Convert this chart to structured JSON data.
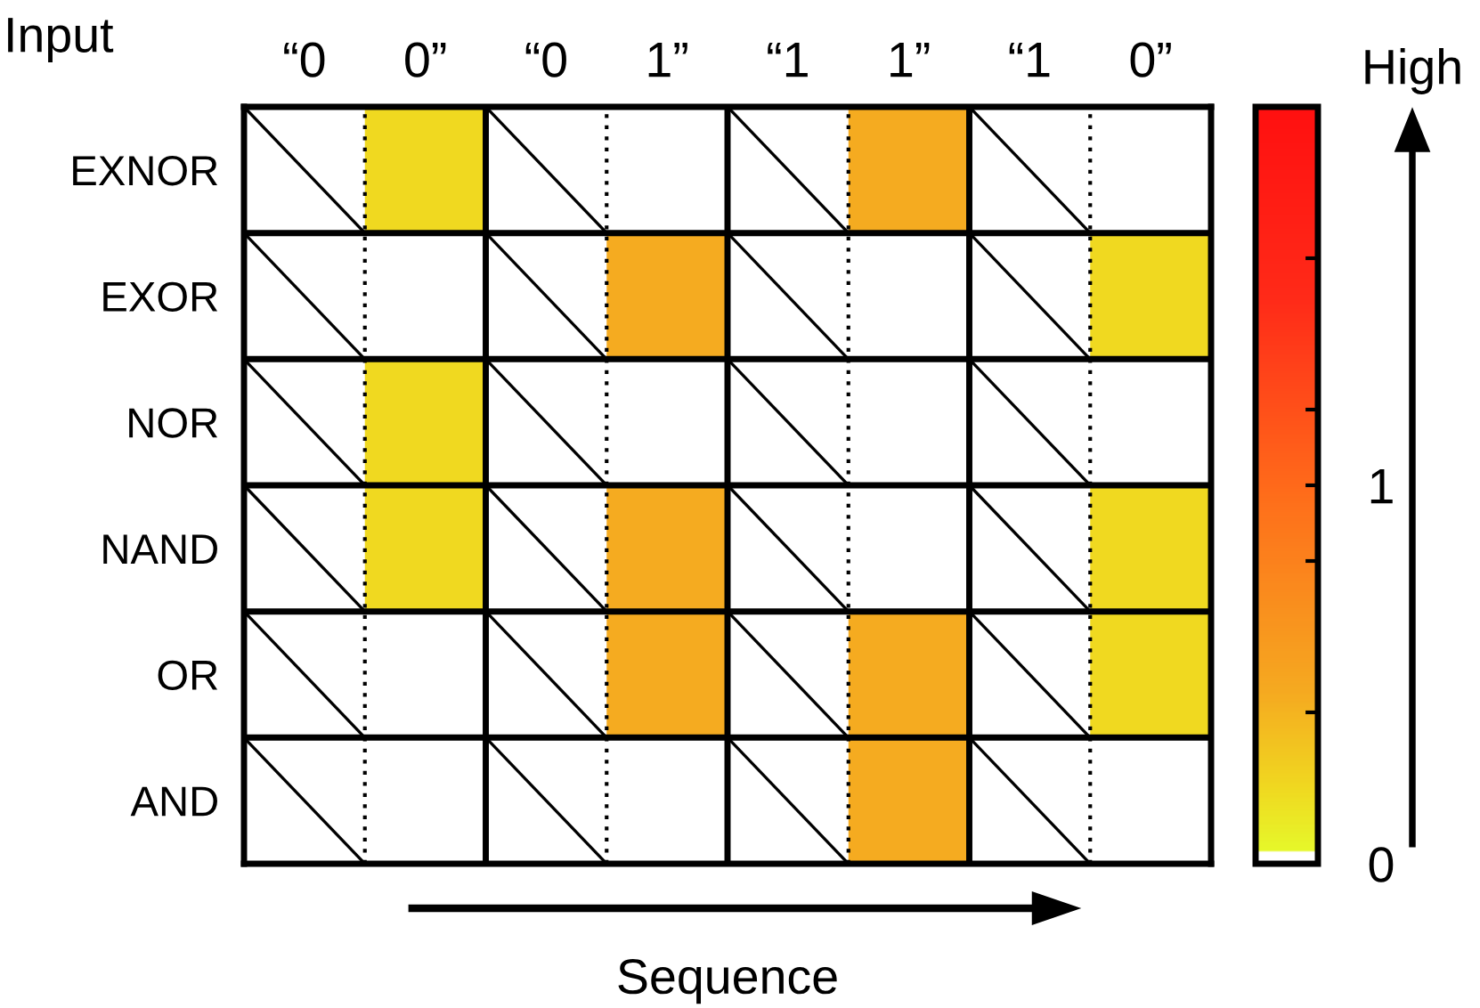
{
  "chart_data": {
    "type": "heatmap",
    "xlabel": "Sequence",
    "annotations": [
      "Input",
      "High"
    ],
    "categories": [
      "“0",
      "0”",
      "“0",
      "1”",
      "“1",
      "1”",
      "“1",
      "0”"
    ],
    "y_categories": [
      "EXNOR",
      "EXOR",
      "NOR",
      "NAND",
      "OR",
      "AND"
    ],
    "cells": [
      [
        null,
        0.2,
        null,
        0,
        null,
        0.45,
        null,
        0
      ],
      [
        null,
        0,
        null,
        0.45,
        null,
        0,
        null,
        0.2
      ],
      [
        null,
        0.2,
        null,
        0,
        null,
        0,
        null,
        0
      ],
      [
        null,
        0.2,
        null,
        0.45,
        null,
        0,
        null,
        0.2
      ],
      [
        null,
        0,
        null,
        0.45,
        null,
        0.45,
        null,
        0.2
      ],
      [
        null,
        0,
        null,
        0,
        null,
        0.45,
        null,
        0
      ]
    ],
    "clim": [
      0,
      2
    ],
    "cticks": [
      0,
      {
        "value": 0.4,
        "label": null
      },
      {
        "value": 0.8,
        "label": null
      },
      1,
      {
        "value": 1.2,
        "label": null
      },
      {
        "value": 1.6,
        "label": null
      }
    ]
  }
}
